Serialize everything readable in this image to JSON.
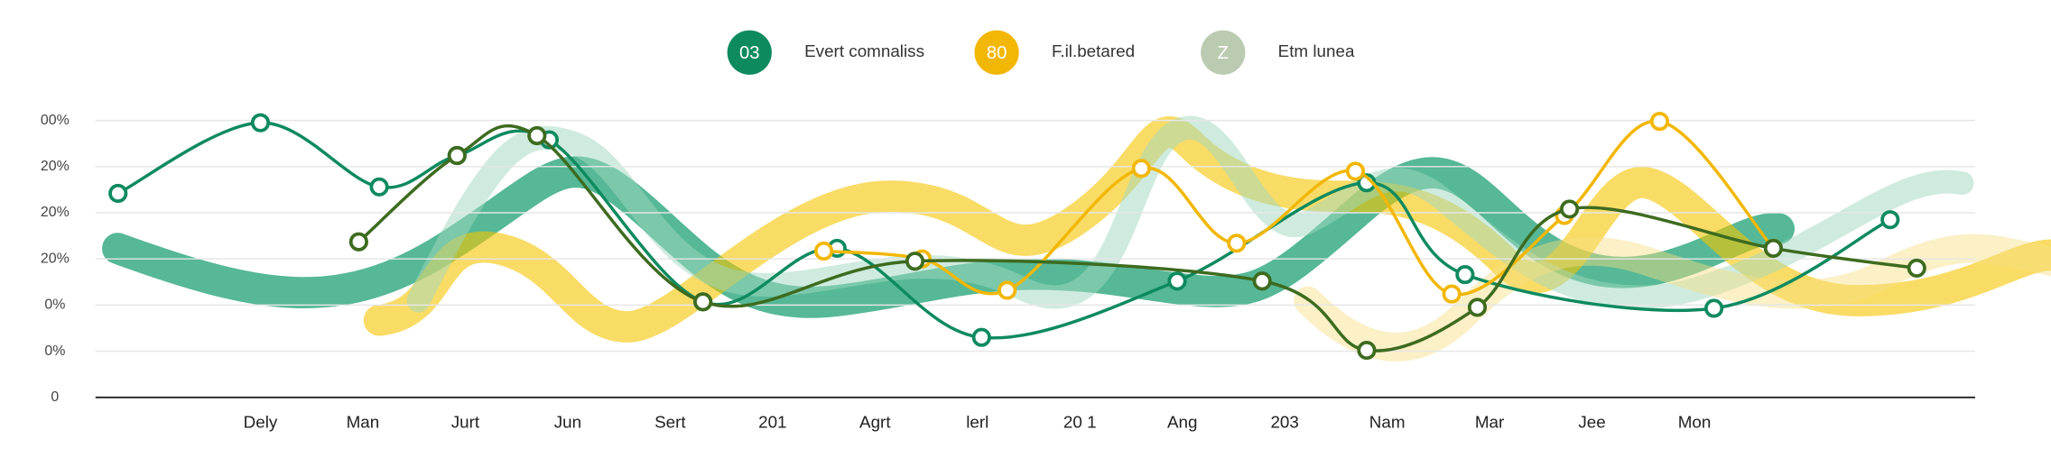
{
  "chart_data": {
    "type": "line",
    "legend": "top",
    "grid": true,
    "categories": [
      "Dely",
      "Man",
      "Jurt",
      "Jun",
      "Sert",
      "201",
      "Agrt",
      "lerl",
      "20 1",
      "Ang",
      "203",
      "Nam",
      "Mar",
      "Jee",
      "Mon"
    ],
    "ylabels": [
      "0",
      "0%",
      "0%",
      "20%",
      "20%",
      "20%",
      "00%"
    ],
    "xlim": [
      -1.61,
      16.74
    ],
    "ylim": [
      0,
      6
    ],
    "series": [
      {
        "name": "Evert comnaliss",
        "badge": "03",
        "color": "#0e8a5f",
        "x": [
          -1.39,
          0,
          1.16,
          1.92,
          2.82,
          4.32,
          5.63,
          7.04,
          8.95,
          10.8,
          11.76,
          14.19,
          15.91
        ],
        "values": [
          4.42,
          5.95,
          4.56,
          5.24,
          5.58,
          2.07,
          3.23,
          1.3,
          2.52,
          4.65,
          2.66,
          1.93,
          3.85
        ]
      },
      {
        "name": "F.il.betared",
        "badge": "80",
        "color": "#f2b705",
        "x": [
          5.5,
          6.46,
          7.29,
          8.6,
          9.53,
          10.69,
          11.63,
          12.73,
          13.66,
          14.77
        ],
        "values": [
          3.17,
          3.0,
          2.32,
          4.96,
          3.34,
          4.9,
          2.24,
          3.94,
          5.98,
          3.23
        ]
      },
      {
        "name": "Etm lunea",
        "badge": "Z",
        "color": "#3d6b1f",
        "x": [
          0.96,
          1.92,
          2.7,
          4.32,
          6.39,
          9.78,
          10.8,
          11.88,
          12.78,
          14.77,
          16.17
        ],
        "values": [
          3.37,
          5.24,
          5.67,
          2.07,
          2.95,
          2.52,
          1.02,
          1.95,
          4.08,
          3.23,
          2.8
        ]
      }
    ]
  }
}
